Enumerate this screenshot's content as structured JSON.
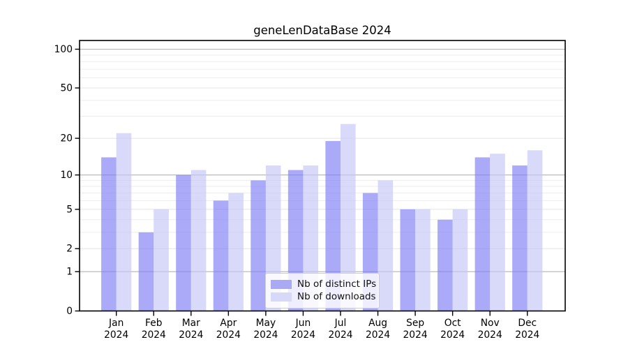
{
  "title": "geneLenDataBase 2024",
  "chart_data": {
    "type": "bar",
    "title": "geneLenDataBase 2024",
    "categories": [
      "Jan 2024",
      "Feb 2024",
      "Mar 2024",
      "Apr 2024",
      "May 2024",
      "Jun 2024",
      "Jul 2024",
      "Aug 2024",
      "Sep 2024",
      "Oct 2024",
      "Nov 2024",
      "Dec 2024"
    ],
    "month_labels": [
      "Jan",
      "Feb",
      "Mar",
      "Apr",
      "May",
      "Jun",
      "Jul",
      "Aug",
      "Sep",
      "Oct",
      "Nov",
      "Dec"
    ],
    "year_label": "2024",
    "series": [
      {
        "name": "Nb of distinct IPs",
        "color": "#aaaaf4",
        "fill_rgba": "rgba(125,125,246,0.65)",
        "values": [
          14,
          3,
          10,
          6,
          9,
          11,
          19,
          7,
          5,
          4,
          14,
          12
        ]
      },
      {
        "name": "Nb of downloads",
        "color": "#d8d8f9",
        "fill_rgba": "rgba(196,196,248,0.65)",
        "values": [
          22,
          5,
          11,
          7,
          12,
          12,
          26,
          9,
          5,
          5,
          15,
          16
        ]
      }
    ],
    "yscale": "log1p",
    "ylim": [
      0,
      110
    ],
    "y_major_ticks": [
      0,
      1,
      2,
      5,
      10,
      20,
      50,
      100
    ],
    "y_decade_gridlines": [
      1,
      10,
      100
    ],
    "y_minor_gridlines": [
      3,
      4,
      6,
      7,
      8,
      9,
      30,
      40,
      60,
      70,
      80,
      90
    ],
    "xlabel": "",
    "ylabel": "",
    "grid": true,
    "legend_position": "lower center"
  },
  "colors": {
    "grid_decade": "#b3b3b3",
    "grid_major": "#e4e4e4",
    "grid_minor": "#ededed",
    "spine": "#000000",
    "background": "#ffffff"
  }
}
